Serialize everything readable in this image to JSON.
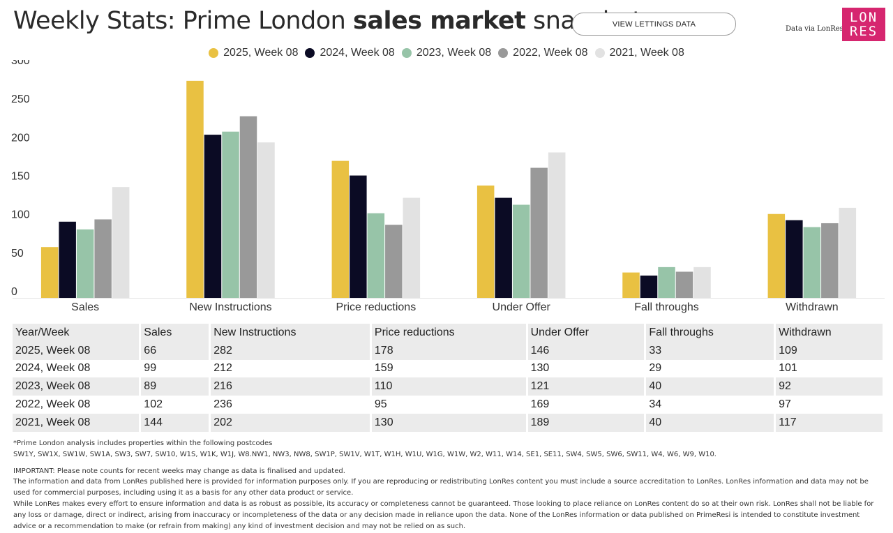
{
  "header": {
    "title_pre": "Weekly Stats: Prime London ",
    "title_bold": "sales market",
    "title_post": " snapshot",
    "view_button": "VIEW LETTINGS DATA",
    "via": "Data via LonRes",
    "logo_line1": "LON",
    "logo_line2": "RES"
  },
  "colors": {
    "series": [
      "#e9c142",
      "#0b0b24",
      "#97c4a8",
      "#999999",
      "#e2e2e2"
    ]
  },
  "chart_data": {
    "type": "bar",
    "categories": [
      "Sales",
      "New Instructions",
      "Price reductions",
      "Under Offer",
      "Fall throughs",
      "Withdrawn"
    ],
    "series": [
      {
        "name": "2025, Week 08",
        "values": [
          66,
          282,
          178,
          146,
          33,
          109
        ]
      },
      {
        "name": "2024, Week 08",
        "values": [
          99,
          212,
          159,
          130,
          29,
          101
        ]
      },
      {
        "name": "2023, Week 08",
        "values": [
          89,
          216,
          110,
          121,
          40,
          92
        ]
      },
      {
        "name": "2022, Week 08",
        "values": [
          102,
          236,
          95,
          169,
          34,
          97
        ]
      },
      {
        "name": "2021, Week 08",
        "values": [
          144,
          202,
          130,
          189,
          40,
          117
        ]
      }
    ],
    "yticks": [
      0,
      50,
      100,
      150,
      200,
      250,
      300
    ],
    "ylim": [
      0,
      300
    ],
    "grid": false,
    "legend_position": "top"
  },
  "table": {
    "headers": [
      "Year/Week",
      "Sales",
      "New Instructions",
      "Price reductions",
      "Under Offer",
      "Fall throughs",
      "Withdrawn"
    ],
    "rows": [
      [
        "2025, Week 08",
        "66",
        "282",
        "178",
        "146",
        "33",
        "109"
      ],
      [
        "2024, Week 08",
        "99",
        "212",
        "159",
        "130",
        "29",
        "101"
      ],
      [
        "2023, Week 08",
        "89",
        "216",
        "110",
        "121",
        "40",
        "92"
      ],
      [
        "2022, Week 08",
        "102",
        "236",
        "95",
        "169",
        "34",
        "97"
      ],
      [
        "2021, Week 08",
        "144",
        "202",
        "130",
        "189",
        "40",
        "117"
      ]
    ]
  },
  "footer": {
    "note1": "*Prime London analysis includes properties within the following postcodes",
    "note2": "SW1Y, SW1X, SW1W, SW1A, SW3, SW7, SW10, W1S, W1K, W1J, W8.NW1, NW3, NW8, SW1P, SW1V, W1T, W1H, W1U, W1G, W1W, W2, W11, W14, SE1, SE11, SW4, SW5, SW6, SW11, W4, W6, W9, W10.",
    "important": "IMPORTANT: Please note counts for recent weeks may change as data is finalised and updated.",
    "para1": "The information and data from LonRes published here is provided for information purposes only. If you are reproducing or redistributing LonRes content you must include a source accreditation to LonRes. LonRes information and data may not be used for commercial purposes, including using it as a basis for any other data product or service.",
    "para2": "While LonRes makes every effort to ensure information and data is as robust as possible, its accuracy or completeness cannot be guaranteed. Those looking to place reliance on LonRes content do so at their own risk. LonRes shall not be liable for any loss or damage, direct or indirect, arising from inaccuracy or incompleteness of the data or any decision made in reliance upon the data. None of the LonRes information or data published on PrimeResi is intended to constitute investment advice or a recommendation to make (or refrain from making) any kind of investment decision and may not be relied on as such."
  }
}
